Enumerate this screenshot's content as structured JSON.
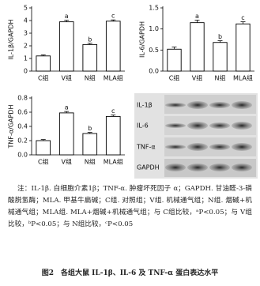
{
  "chart_data": [
    {
      "type": "bar",
      "ylabel": "IL-1β/GAPDH",
      "categories": [
        "C组",
        "V组",
        "N组",
        "MLA组"
      ],
      "values": [
        1.2,
        3.9,
        2.1,
        3.95
      ],
      "errors": [
        0.08,
        0.12,
        0.1,
        0.1
      ],
      "bar_labels": [
        null,
        "a",
        "b",
        "c"
      ],
      "ylim": [
        0,
        5
      ],
      "yticks": [
        0,
        1,
        2,
        3,
        4,
        5
      ],
      "color": "#ffffff"
    },
    {
      "type": "bar",
      "ylabel": "IL-6/GAPDH",
      "categories": [
        "C组",
        "V组",
        "N组",
        "MLA组"
      ],
      "values": [
        0.52,
        1.15,
        0.68,
        1.12
      ],
      "errors": [
        0.05,
        0.06,
        0.04,
        0.05
      ],
      "bar_labels": [
        null,
        "a",
        "b",
        "c"
      ],
      "ylim": [
        0,
        1.5
      ],
      "yticks": [
        {
          "value": 0,
          "label": "0.0"
        },
        0.5,
        {
          "value": 1,
          "label": "1.0"
        },
        1.5
      ],
      "color": "#ffffff"
    },
    {
      "type": "bar",
      "ylabel": "TNF-α/GAPDH",
      "categories": [
        "C组",
        "V组",
        "N组",
        "MLA组"
      ],
      "values": [
        0.2,
        0.59,
        0.3,
        0.54
      ],
      "errors": [
        0.015,
        0.02,
        0.015,
        0.02
      ],
      "bar_labels": [
        null,
        "a",
        "b",
        "c"
      ],
      "ylim": [
        0,
        0.8
      ],
      "yticks": [
        {
          "value": 0,
          "label": "0.0"
        },
        0.2,
        0.4,
        0.6,
        0.8
      ],
      "color": "#ffffff"
    }
  ],
  "blot": {
    "labels": [
      "IL-1β",
      "IL-6",
      "TNF-α",
      "GAPDH"
    ]
  },
  "caption": {
    "note": "注：IL-1β. 白细胞介素1β；TNF-α. 肿瘤坏死因子 α；GAPDH. 甘油醛-3-磷酸脱氢酶；MLA. 甲基牛扁碱；C组. 对照组；V组. 机械通气组；N组. 烟碱+机械通气组；MLA组. MLA+烟碱+机械通气组；与 C组比较，ᵃP<0.05；与 V组比较，ᵇP<0.05；与 N组比较，ᶜP<0.05",
    "title": "图2　各组大鼠 IL-1β、IL-6 及 TNF-α 蛋白表达水平"
  }
}
